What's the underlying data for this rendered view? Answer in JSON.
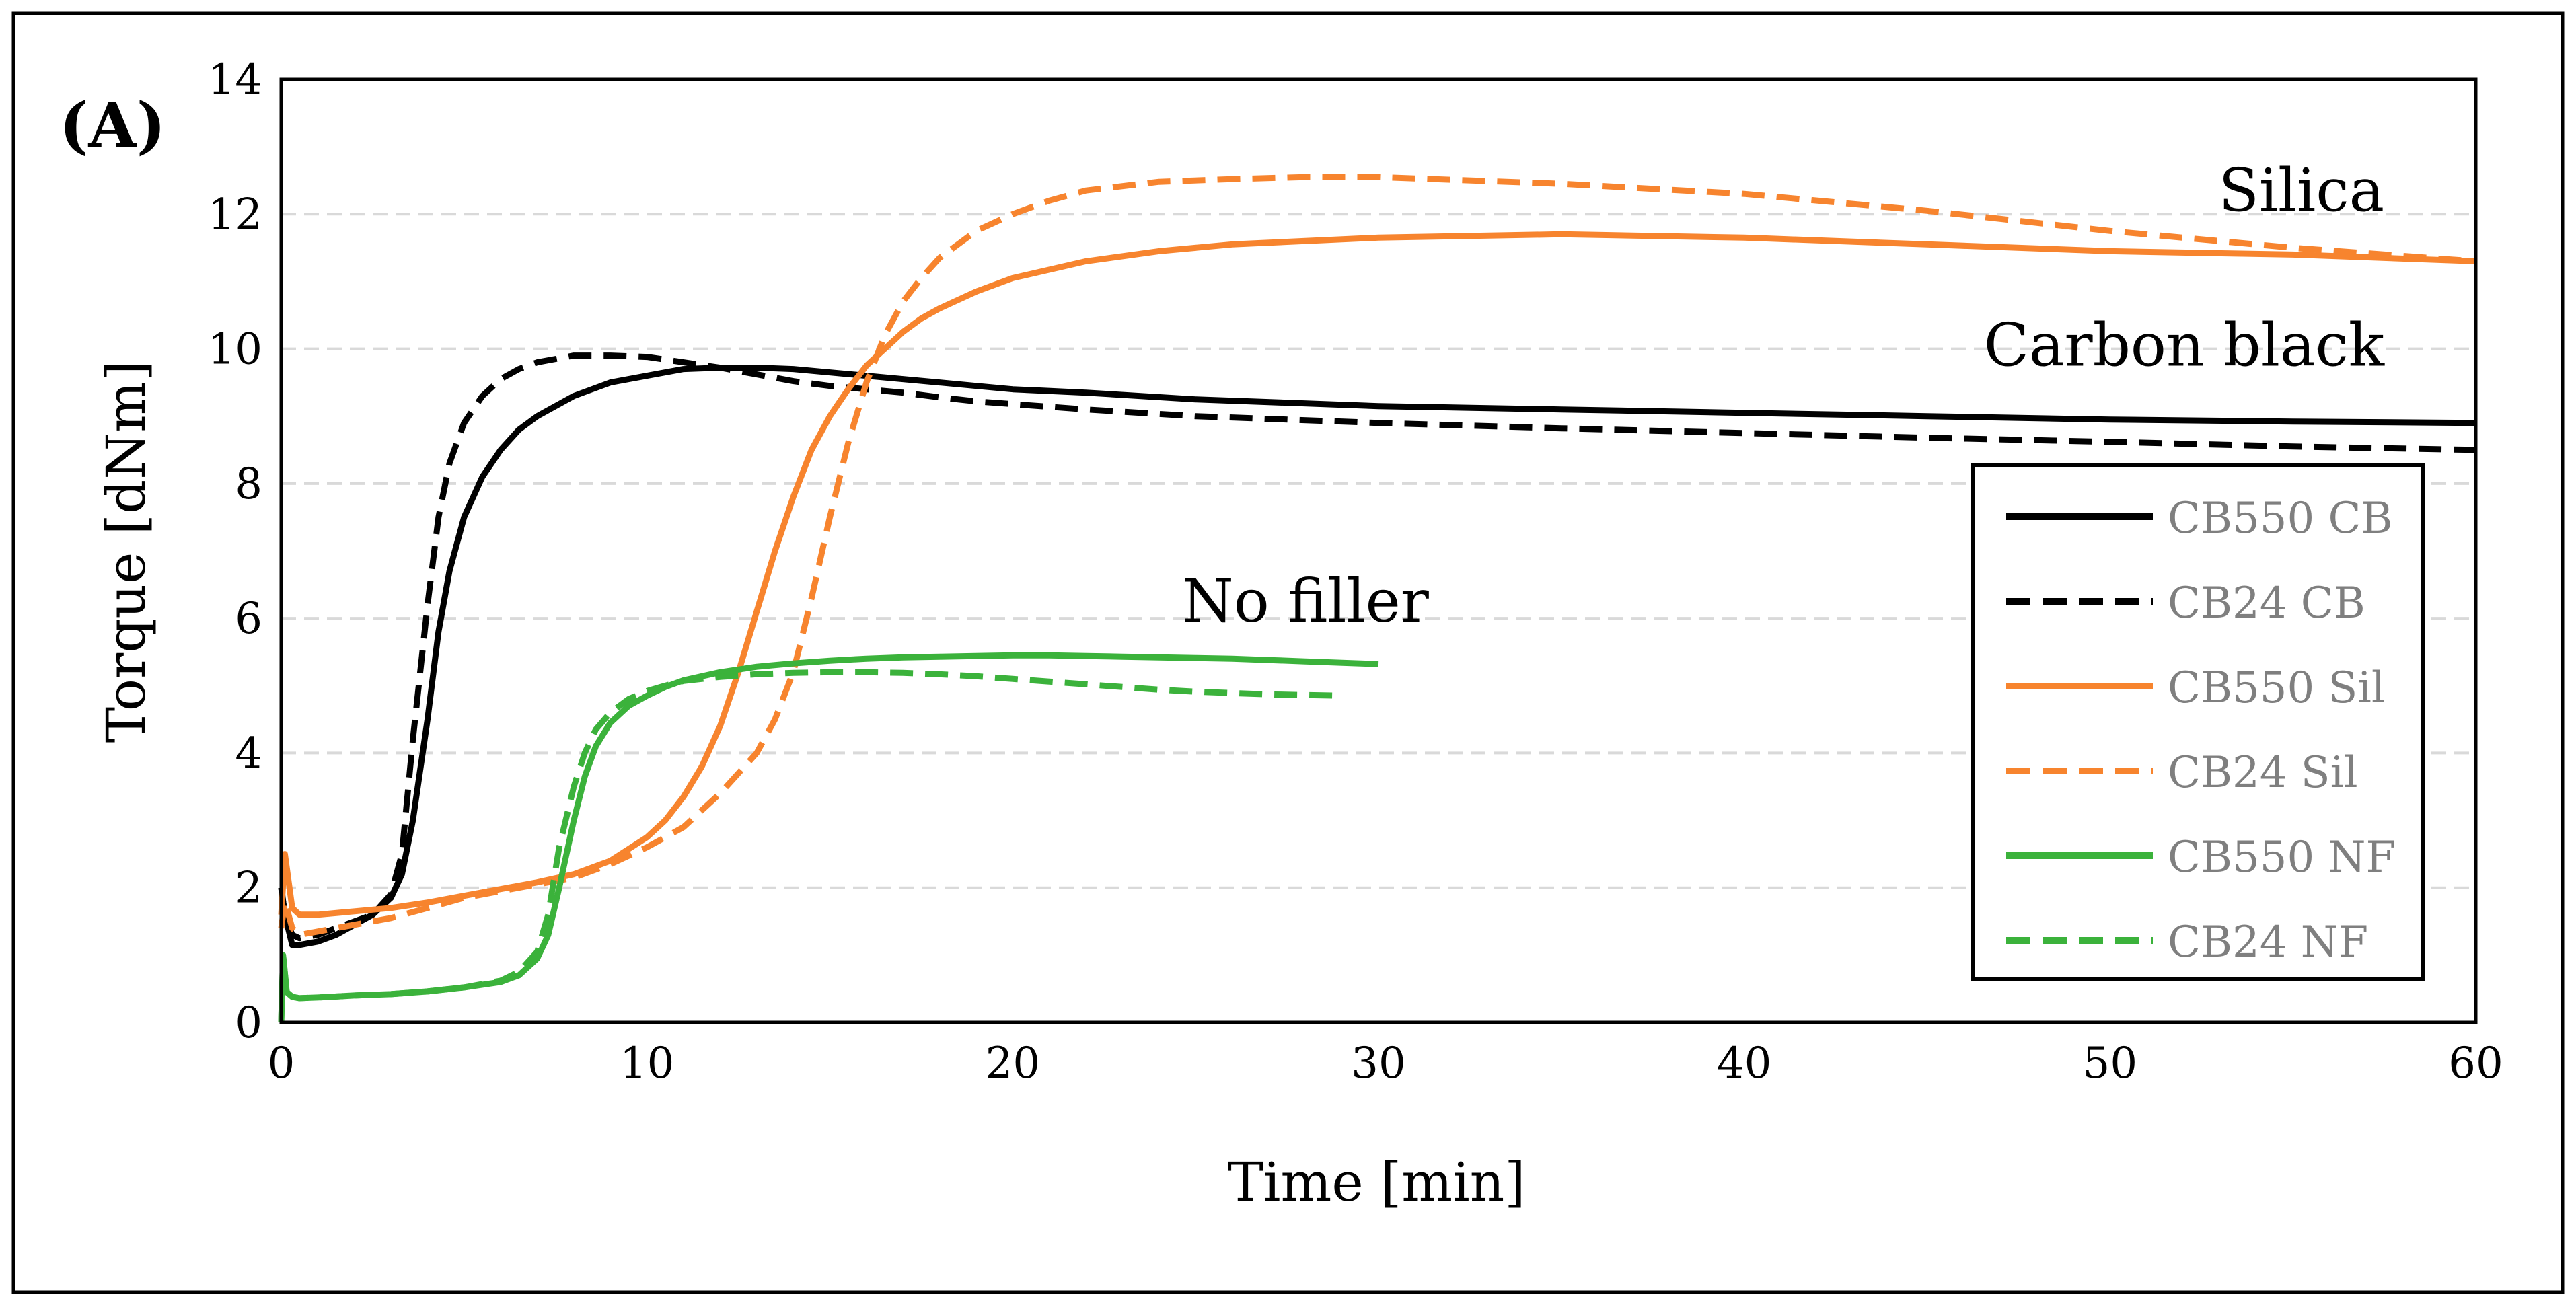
{
  "chart_data": {
    "type": "line",
    "panel_label": "(A)",
    "title": "",
    "xlabel": "Time [min]",
    "ylabel": "Torque [dNm]",
    "xlim": [
      0,
      60
    ],
    "ylim": [
      0,
      14
    ],
    "x_ticks": [
      0,
      10,
      20,
      30,
      40,
      50,
      60
    ],
    "y_ticks": [
      0,
      2,
      4,
      6,
      8,
      10,
      12,
      14
    ],
    "grid": "horizontal dashed",
    "legend_position": "bottom-right",
    "annotations": [
      {
        "text": "Silica",
        "x": 57.5,
        "y": 12.05
      },
      {
        "text": "Carbon black",
        "x": 57.5,
        "y": 9.75
      },
      {
        "text": "No filler",
        "x": 28.0,
        "y": 5.95
      }
    ],
    "series": [
      {
        "name": "CB550 CB",
        "color": "#000000",
        "dash": "solid",
        "x": [
          0,
          0.1,
          0.3,
          0.5,
          1,
          1.5,
          2,
          2.5,
          3,
          3.3,
          3.6,
          4,
          4.3,
          4.6,
          5,
          5.5,
          6,
          6.5,
          7,
          8,
          9,
          10,
          11,
          12,
          13,
          14,
          15,
          16,
          17,
          18,
          19,
          20,
          22,
          25,
          30,
          35,
          40,
          45,
          50,
          55,
          60
        ],
        "y": [
          2.0,
          1.6,
          1.15,
          1.15,
          1.2,
          1.3,
          1.45,
          1.6,
          1.85,
          2.2,
          3.0,
          4.5,
          5.8,
          6.7,
          7.5,
          8.1,
          8.5,
          8.8,
          9.0,
          9.3,
          9.5,
          9.6,
          9.7,
          9.72,
          9.72,
          9.7,
          9.65,
          9.6,
          9.55,
          9.5,
          9.45,
          9.4,
          9.35,
          9.25,
          9.15,
          9.1,
          9.05,
          9.0,
          8.95,
          8.92,
          8.9
        ]
      },
      {
        "name": "CB24 CB",
        "color": "#000000",
        "dash": "dashed",
        "x": [
          0,
          0.1,
          0.3,
          0.5,
          1,
          1.5,
          2,
          2.5,
          3,
          3.3,
          3.6,
          4,
          4.3,
          4.6,
          5,
          5.5,
          6,
          6.5,
          7,
          8,
          9,
          10,
          11,
          12,
          13,
          14,
          15,
          16,
          17,
          18,
          19,
          20,
          22,
          25,
          30,
          35,
          40,
          45,
          50,
          55,
          60
        ],
        "y": [
          2.0,
          1.6,
          1.3,
          1.25,
          1.3,
          1.4,
          1.5,
          1.6,
          1.9,
          2.5,
          4.2,
          6.2,
          7.5,
          8.3,
          8.9,
          9.3,
          9.55,
          9.7,
          9.8,
          9.9,
          9.9,
          9.88,
          9.8,
          9.72,
          9.62,
          9.52,
          9.45,
          9.4,
          9.35,
          9.28,
          9.22,
          9.18,
          9.1,
          9.0,
          8.9,
          8.82,
          8.75,
          8.68,
          8.62,
          8.55,
          8.5
        ]
      },
      {
        "name": "CB550 Sil",
        "color": "#F7842E",
        "dash": "solid",
        "x": [
          0,
          0.1,
          0.2,
          0.3,
          0.5,
          1,
          2,
          3,
          4,
          5,
          6,
          7,
          8,
          9,
          10,
          10.5,
          11,
          11.5,
          12,
          12.5,
          13,
          13.5,
          14,
          14.5,
          15,
          15.5,
          16,
          16.5,
          17,
          17.5,
          18,
          19,
          20,
          22,
          24,
          26,
          28,
          30,
          35,
          40,
          45,
          50,
          55,
          60
        ],
        "y": [
          1.6,
          2.5,
          2.1,
          1.7,
          1.6,
          1.6,
          1.65,
          1.7,
          1.78,
          1.88,
          1.98,
          2.08,
          2.2,
          2.4,
          2.75,
          3.0,
          3.35,
          3.8,
          4.4,
          5.2,
          6.1,
          7.0,
          7.8,
          8.5,
          9.0,
          9.4,
          9.75,
          10.0,
          10.25,
          10.45,
          10.6,
          10.85,
          11.05,
          11.3,
          11.45,
          11.55,
          11.6,
          11.65,
          11.7,
          11.65,
          11.55,
          11.45,
          11.4,
          11.3
        ]
      },
      {
        "name": "CB24 Sil",
        "color": "#F7842E",
        "dash": "dashed",
        "x": [
          0,
          0.1,
          0.3,
          0.5,
          1,
          2,
          3,
          4,
          5,
          6,
          7,
          8,
          9,
          10,
          11,
          12,
          12.5,
          13,
          13.5,
          14,
          14.5,
          15,
          15.5,
          16,
          16.5,
          17,
          17.5,
          18,
          19,
          20,
          21,
          22,
          24,
          26,
          28,
          30,
          35,
          40,
          45,
          50,
          55,
          60
        ],
        "y": [
          1.4,
          1.8,
          1.4,
          1.3,
          1.35,
          1.45,
          1.55,
          1.7,
          1.85,
          1.95,
          2.05,
          2.15,
          2.35,
          2.6,
          2.9,
          3.4,
          3.7,
          4.0,
          4.5,
          5.2,
          6.3,
          7.5,
          8.6,
          9.5,
          10.2,
          10.7,
          11.05,
          11.35,
          11.75,
          12.0,
          12.2,
          12.35,
          12.48,
          12.52,
          12.55,
          12.55,
          12.45,
          12.3,
          12.05,
          11.75,
          11.5,
          11.3
        ]
      },
      {
        "name": "CB550 NF",
        "color": "#3BB23B",
        "dash": "solid",
        "x": [
          0,
          0.05,
          0.15,
          0.3,
          0.5,
          1,
          2,
          3,
          4,
          5,
          6,
          6.5,
          7,
          7.3,
          7.6,
          8,
          8.3,
          8.6,
          9,
          9.5,
          10,
          10.5,
          11,
          12,
          13,
          14,
          15,
          16,
          17,
          18,
          19,
          20,
          21,
          22,
          23,
          24,
          25,
          26,
          27,
          28,
          29,
          30
        ],
        "y": [
          0,
          1.0,
          0.45,
          0.38,
          0.36,
          0.37,
          0.4,
          0.42,
          0.46,
          0.52,
          0.6,
          0.7,
          0.95,
          1.3,
          2.0,
          3.0,
          3.65,
          4.1,
          4.45,
          4.7,
          4.85,
          4.98,
          5.08,
          5.2,
          5.28,
          5.33,
          5.37,
          5.4,
          5.42,
          5.43,
          5.44,
          5.45,
          5.45,
          5.44,
          5.43,
          5.42,
          5.41,
          5.4,
          5.38,
          5.36,
          5.34,
          5.32
        ]
      },
      {
        "name": "CB24 NF",
        "color": "#3BB23B",
        "dash": "dashed",
        "x": [
          0,
          0.05,
          0.15,
          0.3,
          0.5,
          1,
          2,
          3,
          4,
          5,
          6,
          6.5,
          7,
          7.3,
          7.6,
          8,
          8.3,
          8.6,
          9,
          9.5,
          10,
          10.5,
          11,
          12,
          13,
          14,
          15,
          16,
          17,
          18,
          19,
          20,
          21,
          22,
          23,
          24,
          25,
          26,
          27,
          28,
          29
        ],
        "y": [
          0,
          1.0,
          0.45,
          0.38,
          0.36,
          0.37,
          0.4,
          0.42,
          0.46,
          0.52,
          0.62,
          0.75,
          1.05,
          1.6,
          2.6,
          3.5,
          4.0,
          4.35,
          4.6,
          4.8,
          4.92,
          5.0,
          5.07,
          5.13,
          5.17,
          5.19,
          5.2,
          5.2,
          5.19,
          5.17,
          5.14,
          5.1,
          5.06,
          5.02,
          4.98,
          4.94,
          4.91,
          4.89,
          4.87,
          4.86,
          4.85
        ]
      }
    ]
  }
}
